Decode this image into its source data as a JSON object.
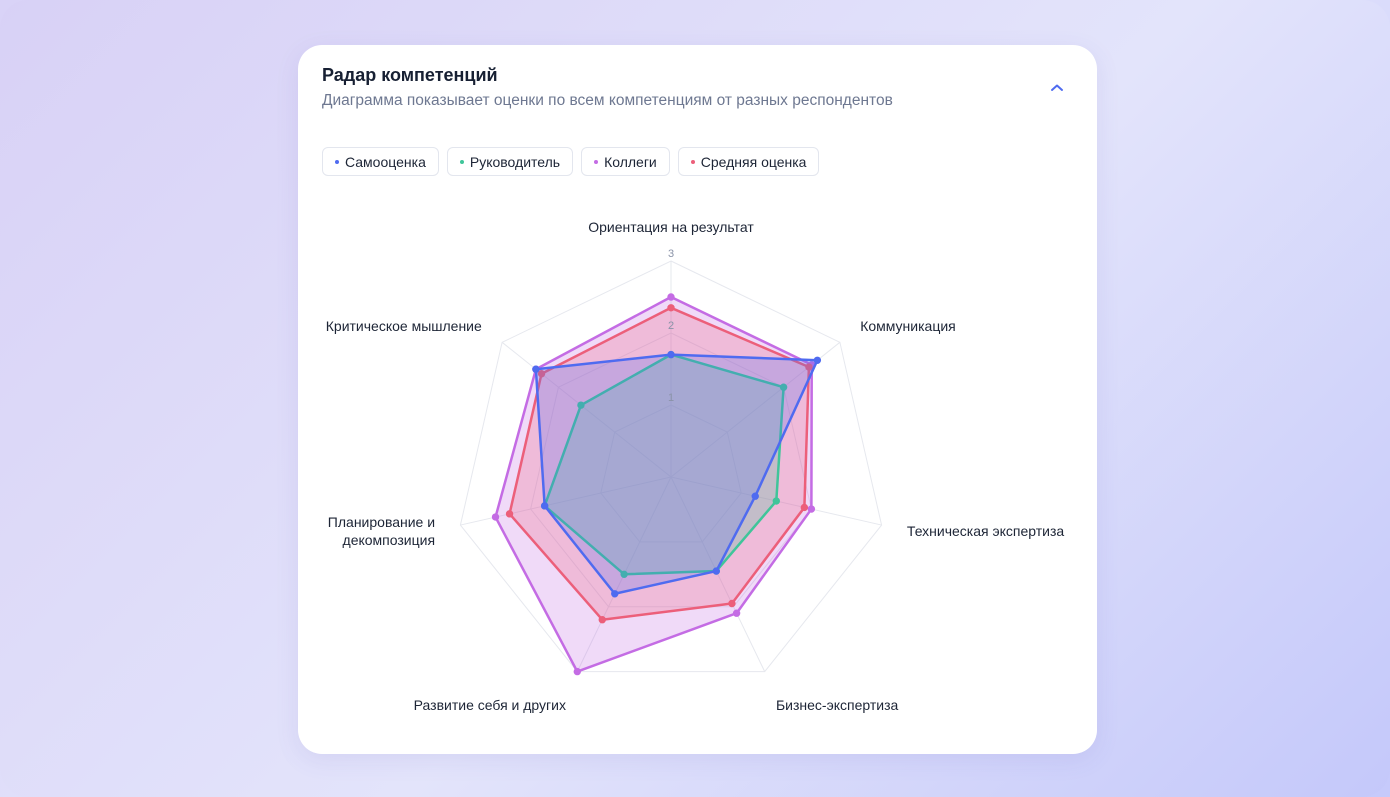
{
  "card": {
    "title": "Радар компетенций",
    "subtitle": "Диаграмма показывает оценки по всем компетенциям от разных респондентов",
    "collapse_icon": "chevron-up-icon"
  },
  "legend": [
    {
      "label": "Самооценка",
      "color": "#4f6bf0"
    },
    {
      "label": "Руководитель",
      "color": "#3fc59a"
    },
    {
      "label": "Коллеги",
      "color": "#c46ce4"
    },
    {
      "label": "Средняя оценка",
      "color": "#ec5f7a"
    }
  ],
  "chart_data": {
    "type": "radar",
    "title": "",
    "axes": [
      [
        "Ориентация на результат"
      ],
      [
        "Коммуникация"
      ],
      [
        "Техническая экспертиза"
      ],
      [
        "Бизнес-экспертиза"
      ],
      [
        "Развитие себя и других"
      ],
      [
        "Планирование и",
        "декомпозиция"
      ],
      [
        "Критическое мышление"
      ]
    ],
    "rlim": [
      0,
      3
    ],
    "ticks": [
      1,
      2,
      3
    ],
    "grid": true,
    "series": [
      {
        "name": "Коллеги",
        "color": "#c46ce4",
        "values": [
          2.5,
          2.5,
          2.0,
          2.1,
          3.0,
          2.5,
          2.4
        ]
      },
      {
        "name": "Средняя оценка",
        "color": "#ec5f7a",
        "values": [
          2.35,
          2.45,
          1.9,
          1.95,
          2.2,
          2.3,
          2.3
        ]
      },
      {
        "name": "Руководитель",
        "color": "#3fc59a",
        "values": [
          1.7,
          2.0,
          1.5,
          1.45,
          1.5,
          1.8,
          1.6
        ]
      },
      {
        "name": "Самооценка",
        "color": "#4f6bf0",
        "values": [
          1.7,
          2.6,
          1.2,
          1.45,
          1.8,
          1.8,
          2.4
        ]
      }
    ]
  }
}
